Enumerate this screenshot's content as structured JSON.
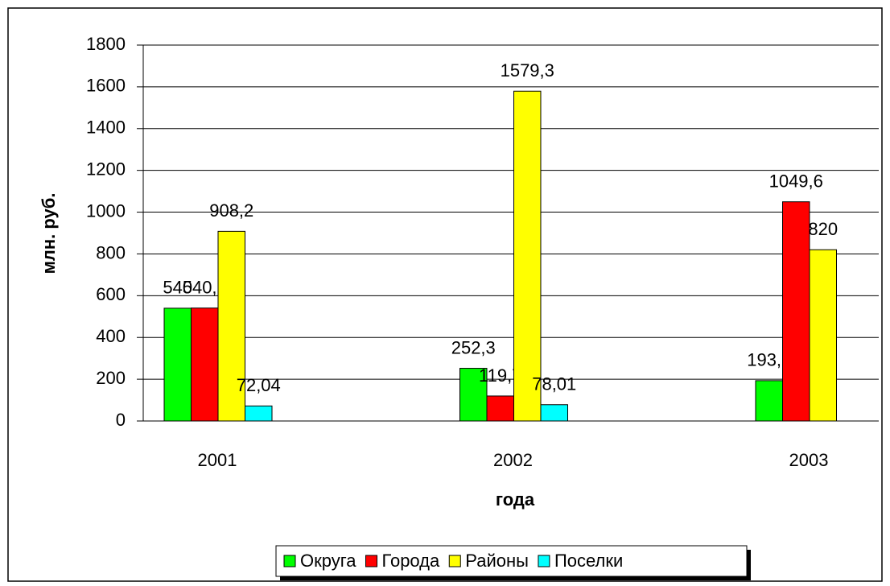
{
  "chart_data": {
    "type": "bar",
    "x_label": "года",
    "y_label": "млн. руб.",
    "categories": [
      "2001",
      "2002",
      "2003"
    ],
    "series": [
      {
        "name": "Округа",
        "color": "#00ff00",
        "values": [
          540,
          252.3,
          193.2
        ],
        "value_labels": [
          "540",
          "252,3",
          "193,2"
        ]
      },
      {
        "name": "Города",
        "color": "#ff0000",
        "values": [
          540.9,
          119.7,
          1049.6
        ],
        "value_labels": [
          "540,9",
          "119,7",
          "1049,6"
        ]
      },
      {
        "name": "Районы",
        "color": "#ffff00",
        "values": [
          908.2,
          1579.3,
          820
        ],
        "value_labels": [
          "908,2",
          "1579,3",
          "820"
        ]
      },
      {
        "name": "Поселки",
        "color": "#00ffff",
        "values": [
          72.04,
          78.01,
          null
        ],
        "value_labels": [
          "72,04",
          "78,01",
          null
        ]
      }
    ],
    "ylim": [
      0,
      1800
    ],
    "yticks": [
      0,
      200,
      400,
      600,
      800,
      1000,
      1200,
      1400,
      1600,
      1800
    ],
    "grid": true,
    "legend": "bottom"
  }
}
